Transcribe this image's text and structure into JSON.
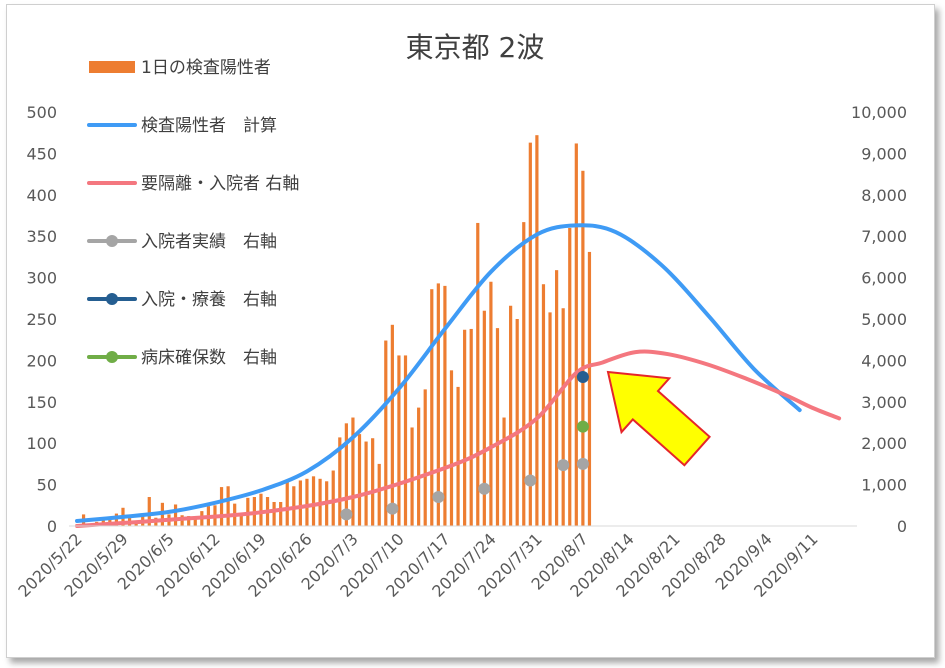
{
  "chart_data": {
    "type": "bar+line",
    "title": "東京都 2波",
    "x_tick_labels": [
      "2020/5/22",
      "2020/5/29",
      "2020/6/5",
      "2020/6/12",
      "2020/6/19",
      "2020/6/26",
      "2020/7/3",
      "2020/7/10",
      "2020/7/17",
      "2020/7/24",
      "2020/7/31",
      "2020/8/7",
      "2020/8/14",
      "2020/8/21",
      "2020/8/28",
      "2020/9/4",
      "2020/9/11"
    ],
    "y_left": {
      "min": 0,
      "max": 500,
      "ticks": [
        "0",
        "50",
        "100",
        "150",
        "200",
        "250",
        "300",
        "350",
        "400",
        "450",
        "500"
      ]
    },
    "y_right": {
      "min": 0,
      "max": 10000,
      "ticks": [
        "0",
        "1,000",
        "2,000",
        "3,000",
        "4,000",
        "5,000",
        "6,000",
        "7,000",
        "8,000",
        "9,000",
        "10,000"
      ]
    },
    "x_start_date": "2020/5/22",
    "legend_position": "top-left",
    "series": [
      {
        "name": "1日の検査陽性者",
        "type": "bar",
        "axis": "left",
        "color": "#ED7D31",
        "values": [
          2,
          14,
          3,
          5,
          8,
          11,
          15,
          22,
          11,
          3,
          14,
          35,
          10,
          28,
          14,
          26,
          13,
          12,
          9,
          18,
          24,
          25,
          47,
          48,
          27,
          13,
          34,
          35,
          39,
          35,
          29,
          29,
          55,
          48,
          55,
          57,
          60,
          57,
          54,
          67,
          107,
          124,
          131,
          111,
          102,
          106,
          75,
          224,
          243,
          206,
          206,
          119,
          143,
          165,
          286,
          293,
          290,
          188,
          168,
          237,
          238,
          366,
          260,
          295,
          239,
          131,
          266,
          250,
          367,
          463,
          472,
          292,
          258,
          309,
          263,
          360,
          462,
          429,
          331
        ]
      },
      {
        "name": "検査陽性者　計算",
        "type": "line",
        "axis": "left",
        "color": "#3F9BF5",
        "points": [
          [
            0,
            6
          ],
          [
            7,
            11
          ],
          [
            14,
            17
          ],
          [
            21,
            28
          ],
          [
            28,
            43
          ],
          [
            35,
            66
          ],
          [
            42,
            107
          ],
          [
            49,
            166
          ],
          [
            56,
            238
          ],
          [
            63,
            307
          ],
          [
            70,
            352
          ],
          [
            76,
            363
          ],
          [
            82,
            355
          ],
          [
            89,
            315
          ],
          [
            96,
            255
          ],
          [
            103,
            190
          ],
          [
            110,
            140
          ]
        ]
      },
      {
        "name": "要隔離・入院者 右軸",
        "type": "line",
        "axis": "right",
        "color": "#F4777F",
        "points": [
          [
            0,
            0
          ],
          [
            14,
            150
          ],
          [
            28,
            330
          ],
          [
            42,
            700
          ],
          [
            56,
            1400
          ],
          [
            63,
            1900
          ],
          [
            70,
            2600
          ],
          [
            76,
            3700
          ],
          [
            80,
            3950
          ],
          [
            85,
            4200
          ],
          [
            90,
            4150
          ],
          [
            96,
            3900
          ],
          [
            102,
            3550
          ],
          [
            108,
            3150
          ],
          [
            112,
            2850
          ],
          [
            116,
            2600
          ]
        ]
      },
      {
        "name": "入院者実績　右軸",
        "type": "scatter",
        "axis": "right",
        "color": "#A5A5A5",
        "points": [
          [
            41,
            280
          ],
          [
            48,
            420
          ],
          [
            55,
            700
          ],
          [
            62,
            900
          ],
          [
            69,
            1100
          ],
          [
            74,
            1470
          ],
          [
            77,
            1500
          ]
        ]
      },
      {
        "name": "入院・療養　右軸",
        "type": "scatter",
        "axis": "right",
        "color": "#255E91",
        "points": [
          [
            77,
            3600
          ]
        ]
      },
      {
        "name": "病床確保数　右軸",
        "type": "scatter",
        "axis": "right",
        "color": "#70AD47",
        "points": [
          [
            77,
            2400
          ]
        ]
      }
    ],
    "grid": false
  },
  "annotation": {
    "type": "arrow",
    "fill": "#FFFF00",
    "stroke": "#E5252A"
  }
}
